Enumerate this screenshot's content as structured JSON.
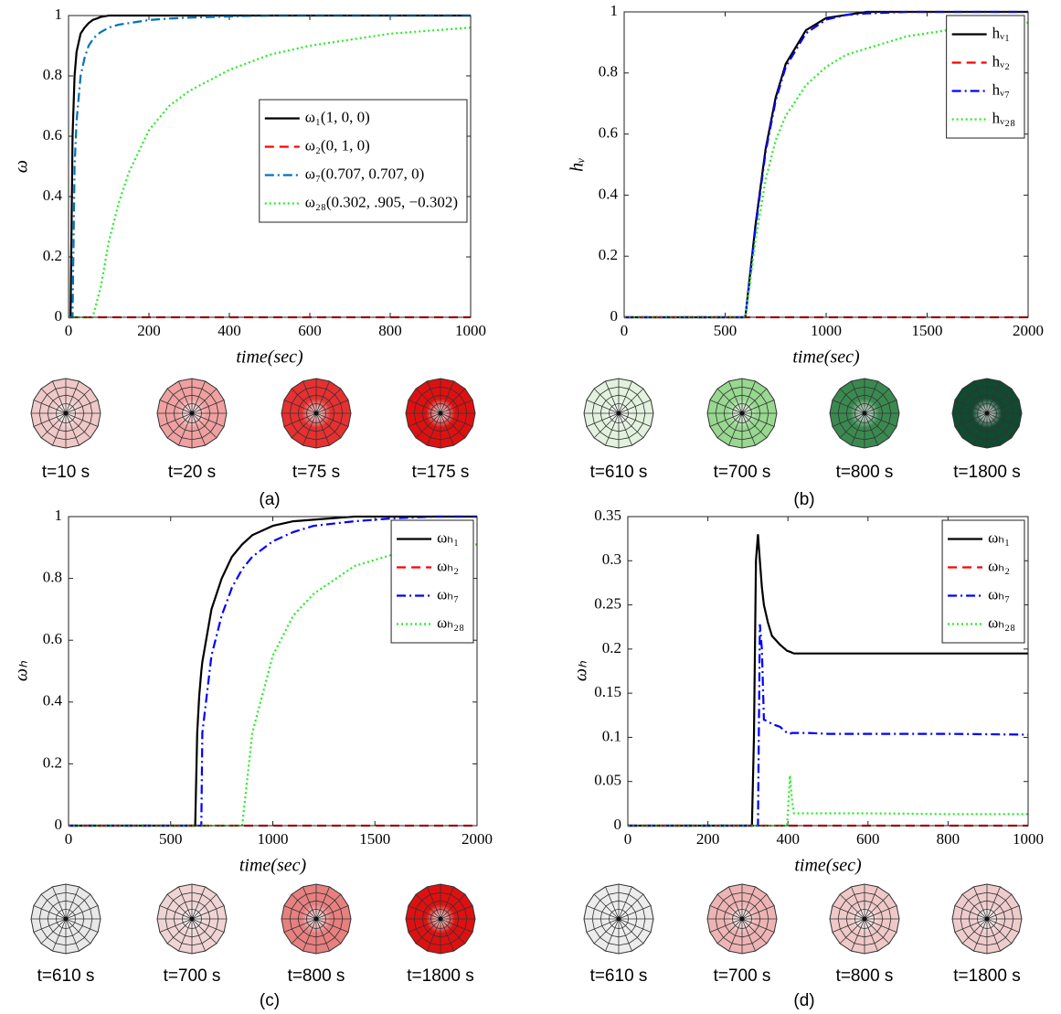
{
  "chart_data": [
    {
      "type": "line",
      "panel_label": "(a)",
      "xlabel": "time(sec)",
      "ylabel": "ω",
      "x": [
        0,
        5,
        10,
        15,
        20,
        30,
        40,
        50,
        60,
        70,
        80,
        100,
        125,
        150,
        200,
        250,
        300,
        400,
        500,
        600,
        700,
        800,
        900,
        1000
      ],
      "xlim": [
        0,
        1000
      ],
      "xticks": [
        0,
        200,
        400,
        600,
        800,
        1000
      ],
      "ylim": [
        0,
        1
      ],
      "yticks": [
        0,
        0.2,
        0.4,
        0.6,
        0.8,
        1
      ],
      "legend": "center right",
      "series": [
        {
          "name": "ω₁(1, 0, 0)",
          "color": "#000000",
          "dash": "solid",
          "values": [
            0,
            0,
            0.6,
            0.8,
            0.88,
            0.94,
            0.96,
            0.975,
            0.985,
            0.99,
            0.995,
            1,
            1,
            1,
            1,
            1,
            1,
            1,
            1,
            1,
            1,
            1,
            1,
            1
          ]
        },
        {
          "name": "ω₂(0, 1, 0)",
          "color": "#ff0000",
          "dash": "dashed",
          "values": [
            0,
            0,
            0,
            0,
            0,
            0,
            0,
            0,
            0,
            0,
            0,
            0,
            0,
            0,
            0,
            0,
            0,
            0,
            0,
            0,
            0,
            0,
            0,
            0
          ]
        },
        {
          "name": "ω₇(0.707, 0.707, 0)",
          "color": "#0072bd",
          "dash": "dashdot",
          "values": [
            0,
            0,
            0,
            0.5,
            0.65,
            0.8,
            0.86,
            0.9,
            0.92,
            0.935,
            0.945,
            0.96,
            0.97,
            0.975,
            0.985,
            0.99,
            0.993,
            0.997,
            1,
            1,
            1,
            1,
            1,
            1
          ]
        },
        {
          "name": "ω₂₈(0.302, .905, −0.302)",
          "color": "#22ee22",
          "dash": "dotted",
          "values": [
            0,
            0,
            0,
            0,
            0,
            0,
            0,
            0,
            0,
            0.05,
            0.1,
            0.25,
            0.38,
            0.48,
            0.62,
            0.7,
            0.75,
            0.82,
            0.87,
            0.9,
            0.92,
            0.94,
            0.95,
            0.96
          ]
        }
      ],
      "snapshots": [
        {
          "label": "t=10 s",
          "color": "#f0c8c8"
        },
        {
          "label": "t=20 s",
          "color": "#f0a0a0"
        },
        {
          "label": "t=75 s",
          "color": "#e83030"
        },
        {
          "label": "t=175 s",
          "color": "#e01010"
        }
      ]
    },
    {
      "type": "line",
      "panel_label": "(b)",
      "xlabel": "time(sec)",
      "ylabel": "hᵥ",
      "x": [
        0,
        600,
        620,
        650,
        700,
        750,
        800,
        900,
        1000,
        1100,
        1200,
        1400,
        1600,
        1800,
        2000
      ],
      "xlim": [
        0,
        2000
      ],
      "xticks": [
        0,
        500,
        1000,
        1500,
        2000
      ],
      "ylim": [
        0,
        1
      ],
      "yticks": [
        0,
        0.2,
        0.4,
        0.6,
        0.8,
        1
      ],
      "legend": "upper right",
      "series": [
        {
          "name": "hᵥ₁",
          "color": "#000000",
          "dash": "solid",
          "values": [
            0,
            0,
            0.12,
            0.3,
            0.55,
            0.72,
            0.83,
            0.94,
            0.98,
            0.99,
            1,
            1,
            1,
            1,
            1
          ]
        },
        {
          "name": "hᵥ₂",
          "color": "#ff0000",
          "dash": "dashed",
          "values": [
            0,
            0,
            0,
            0,
            0,
            0,
            0,
            0,
            0,
            0,
            0,
            0,
            0,
            0,
            0
          ]
        },
        {
          "name": "hᵥ₇",
          "color": "#0000ff",
          "dash": "dashdot",
          "values": [
            0,
            0,
            0.11,
            0.29,
            0.54,
            0.71,
            0.82,
            0.93,
            0.975,
            0.99,
            0.995,
            1,
            1,
            1,
            1
          ]
        },
        {
          "name": "hᵥ₂₈",
          "color": "#22ee22",
          "dash": "dotted",
          "values": [
            0,
            0,
            0.1,
            0.25,
            0.45,
            0.58,
            0.66,
            0.76,
            0.82,
            0.86,
            0.88,
            0.92,
            0.94,
            0.95,
            0.965
          ]
        }
      ],
      "snapshots": [
        {
          "label": "t=610 s",
          "color": "#e2f2de"
        },
        {
          "label": "t=700 s",
          "color": "#98d890"
        },
        {
          "label": "t=800 s",
          "color": "#3a8a50"
        },
        {
          "label": "t=1800 s",
          "color": "#104a30"
        }
      ]
    },
    {
      "type": "line",
      "panel_label": "(c)",
      "xlabel": "time(sec)",
      "ylabel": "ωₕ",
      "x": [
        0,
        620,
        630,
        640,
        650,
        655,
        700,
        750,
        800,
        850,
        900,
        1000,
        1100,
        1200,
        1400,
        1600,
        1800,
        2000
      ],
      "xlim": [
        0,
        2000
      ],
      "xticks": [
        0,
        500,
        1000,
        1500,
        2000
      ],
      "ylim": [
        0,
        1
      ],
      "yticks": [
        0,
        0.2,
        0.4,
        0.6,
        0.8,
        1
      ],
      "legend": "upper right",
      "series": [
        {
          "name": "ωₕ₁",
          "color": "#000000",
          "dash": "solid",
          "values": [
            0,
            0,
            0.3,
            0.42,
            0.5,
            0.53,
            0.7,
            0.8,
            0.87,
            0.91,
            0.94,
            0.97,
            0.985,
            0.99,
            1,
            1,
            1,
            1
          ]
        },
        {
          "name": "ωₕ₂",
          "color": "#ff0000",
          "dash": "dashed",
          "values": [
            0,
            0,
            0,
            0,
            0,
            0,
            0,
            0,
            0,
            0,
            0,
            0,
            0,
            0,
            0,
            0,
            0,
            0
          ]
        },
        {
          "name": "ωₕ₇",
          "color": "#0000ff",
          "dash": "dashdot",
          "values": [
            0,
            0,
            0,
            0,
            0,
            0.3,
            0.55,
            0.68,
            0.77,
            0.83,
            0.87,
            0.92,
            0.95,
            0.97,
            0.985,
            0.995,
            1,
            1
          ]
        },
        {
          "name": "ωₕ₂₈",
          "color": "#22ee22",
          "dash": "dotted",
          "values": [
            0,
            0,
            0,
            0,
            0,
            0,
            0,
            0,
            0,
            0,
            0.3,
            0.55,
            0.68,
            0.75,
            0.84,
            0.88,
            0.9,
            0.91
          ]
        }
      ],
      "snapshots": [
        {
          "label": "t=610 s",
          "color": "#e8e8e8"
        },
        {
          "label": "t=700 s",
          "color": "#f0d4d4"
        },
        {
          "label": "t=800 s",
          "color": "#e88080"
        },
        {
          "label": "t=1800 s",
          "color": "#e01010"
        }
      ]
    },
    {
      "type": "line",
      "panel_label": "(d)",
      "xlabel": "time(sec)",
      "ylabel": "ωₕ",
      "x": [
        0,
        310,
        315,
        320,
        325,
        330,
        335,
        340,
        350,
        360,
        380,
        398,
        405,
        410,
        415,
        420,
        450,
        500,
        600,
        800,
        1000
      ],
      "xlim": [
        0,
        1000
      ],
      "xticks": [
        0,
        200,
        400,
        600,
        800,
        1000
      ],
      "ylim": [
        0,
        0.35
      ],
      "yticks": [
        0,
        0.05,
        0.1,
        0.15,
        0.2,
        0.25,
        0.3,
        0.35
      ],
      "legend": "upper right",
      "series": [
        {
          "name": "ωₕ₁",
          "color": "#000000",
          "dash": "solid",
          "values": [
            0,
            0,
            0.1,
            0.3,
            0.33,
            0.3,
            0.27,
            0.25,
            0.23,
            0.215,
            0.205,
            0.198,
            0.197,
            0.196,
            0.195,
            0.195,
            0.195,
            0.195,
            0.195,
            0.195,
            0.195
          ]
        },
        {
          "name": "ωₕ₂",
          "color": "#ff0000",
          "dash": "dashed",
          "values": [
            0,
            0,
            0,
            0,
            0,
            0,
            0,
            0,
            0,
            0,
            0,
            0,
            0,
            0,
            0,
            0,
            0,
            0,
            0,
            0,
            0
          ]
        },
        {
          "name": "ωₕ₇",
          "color": "#0000ff",
          "dash": "dashdot",
          "values": [
            0,
            0,
            0,
            0,
            0,
            0.228,
            0.2,
            0.12,
            0.118,
            0.115,
            0.112,
            0.105,
            0.104,
            0.105,
            0.105,
            0.105,
            0.105,
            0.104,
            0.104,
            0.104,
            0.103
          ]
        },
        {
          "name": "ωₕ₂₈",
          "color": "#22ee22",
          "dash": "dotted",
          "values": [
            0,
            0,
            0,
            0,
            0,
            0,
            0,
            0,
            0,
            0,
            0,
            0,
            0.057,
            0.03,
            0.014,
            0.014,
            0.014,
            0.014,
            0.014,
            0.013,
            0.013
          ]
        }
      ],
      "snapshots": [
        {
          "label": "t=610 s",
          "color": "#ececec"
        },
        {
          "label": "t=700 s",
          "color": "#eeb4b4"
        },
        {
          "label": "t=800 s",
          "color": "#f0c8c8"
        },
        {
          "label": "t=1800 s",
          "color": "#efcccc"
        }
      ]
    }
  ]
}
